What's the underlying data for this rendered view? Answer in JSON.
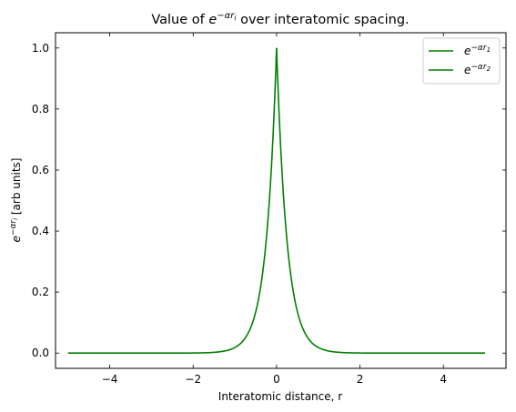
{
  "chart_data": {
    "type": "line",
    "title_prefix": "Value of ",
    "title_exp": "−αr",
    "title_exp_sub": "i",
    "title_suffix": " over interatomic spacing.",
    "xlabel": "Interatomic distance, r",
    "ylabel_exp": "−αr",
    "ylabel_exp_sub": "i",
    "ylabel_suffix": " [arb units]",
    "xlim": [
      -5.3,
      5.5
    ],
    "ylim": [
      -0.05,
      1.05
    ],
    "xticks": [
      -4,
      -2,
      0,
      2,
      4
    ],
    "xtick_labels": [
      "−4",
      "−2",
      "0",
      "2",
      "4"
    ],
    "yticks": [
      0.0,
      0.2,
      0.4,
      0.6,
      0.8,
      1.0
    ],
    "ytick_labels": [
      "0.0",
      "0.2",
      "0.4",
      "0.6",
      "0.8",
      "1.0"
    ],
    "x_range": [
      -5,
      5
    ],
    "alpha": 4,
    "grid": false,
    "legend_position": "top-right",
    "series": [
      {
        "name_exp": "−αr",
        "name_sub": "1",
        "domain": [
          -5,
          0
        ],
        "color": "#008000"
      },
      {
        "name_exp": "−αr",
        "name_sub": "2",
        "domain": [
          0,
          5
        ],
        "color": "#008000"
      }
    ]
  }
}
